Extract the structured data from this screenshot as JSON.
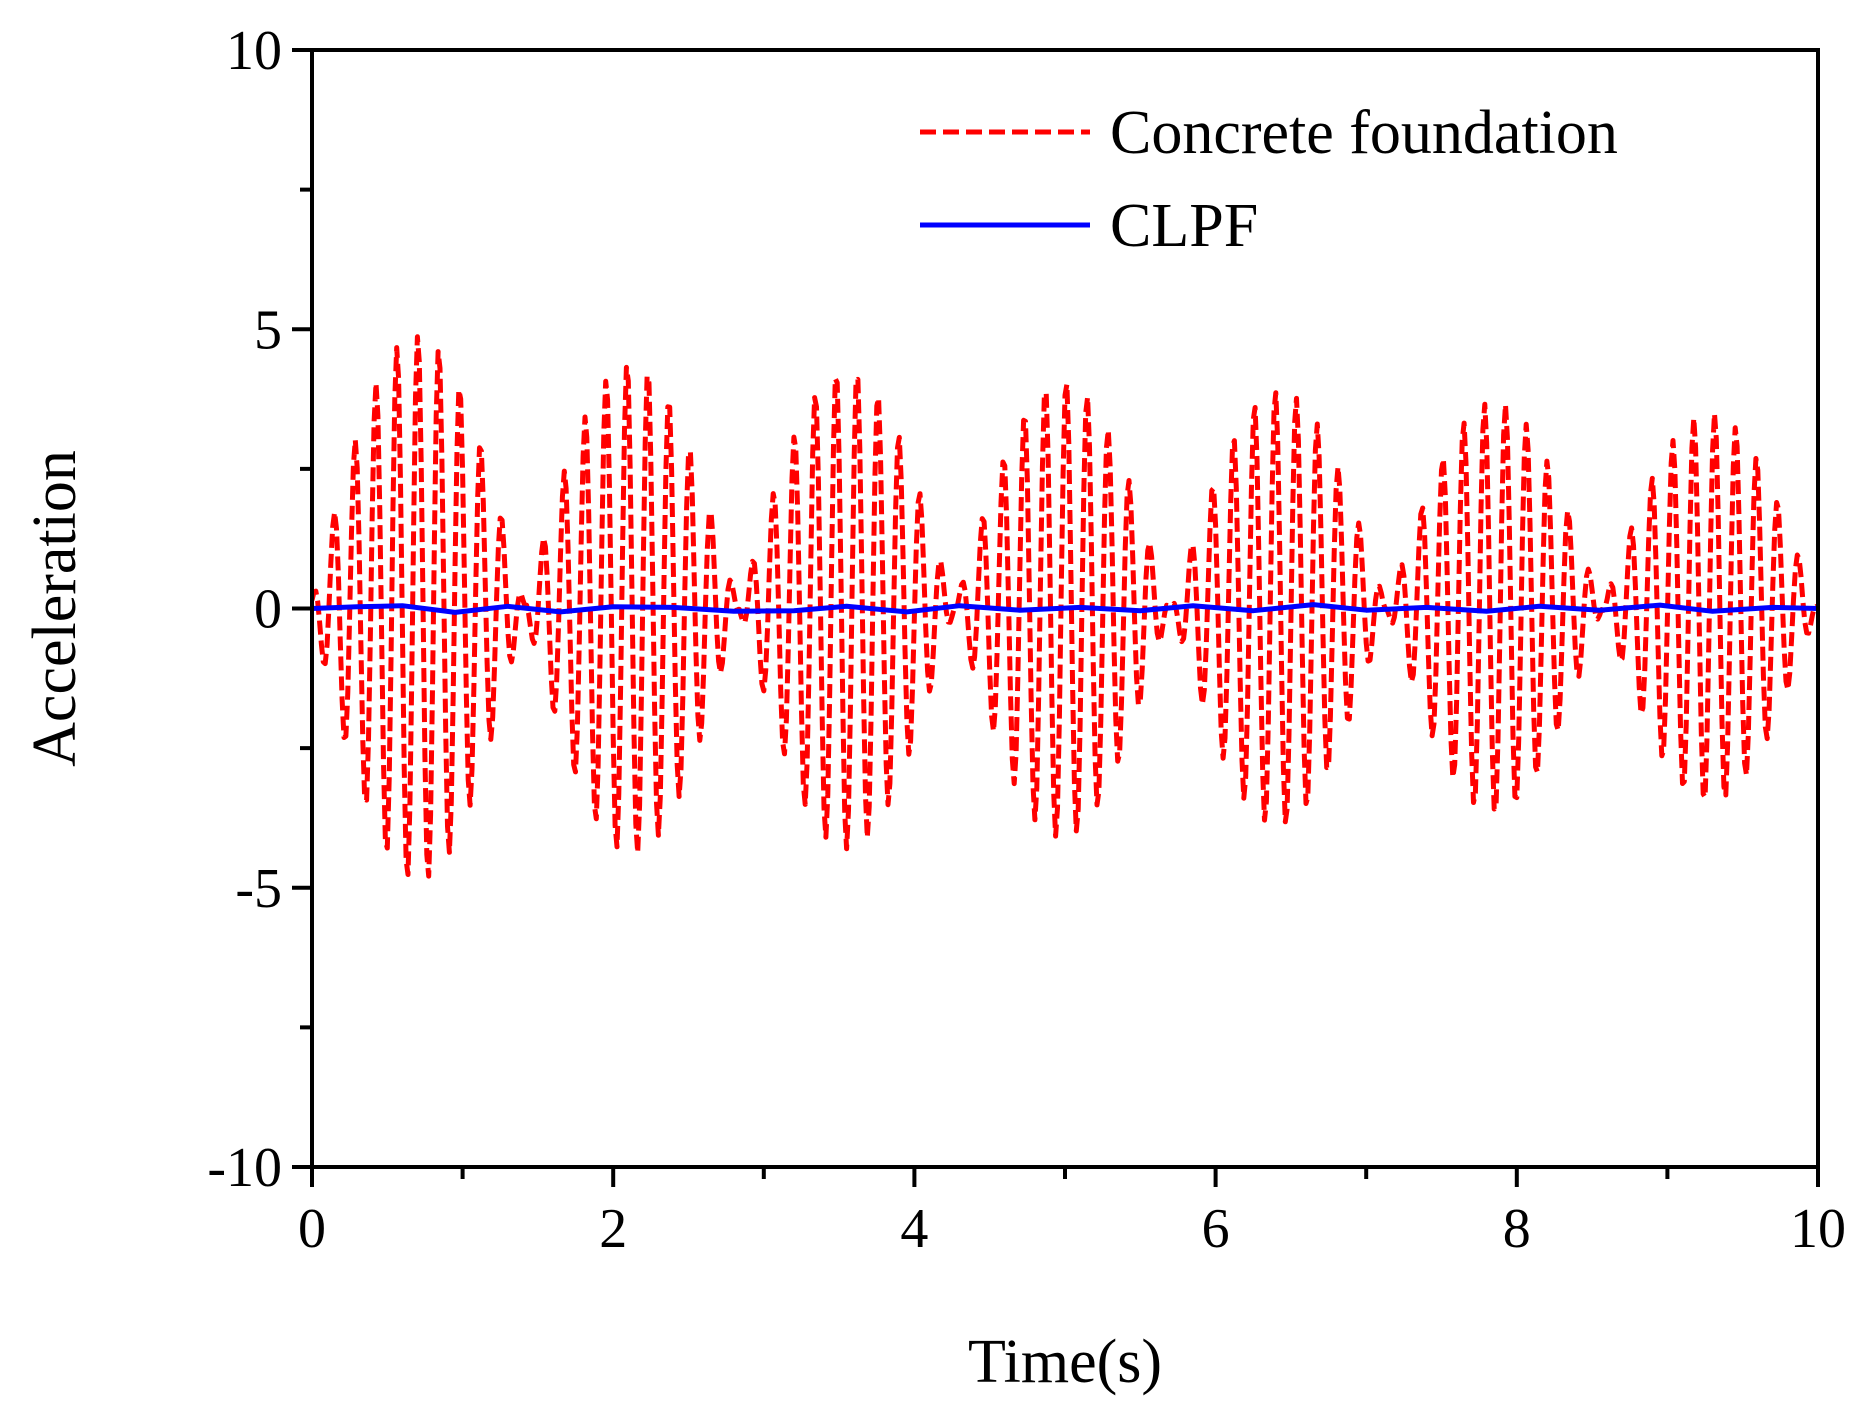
{
  "chart_data": {
    "type": "line",
    "title": "",
    "xlabel": "Time(s)",
    "ylabel": "Acceleration",
    "xlim": [
      0,
      10
    ],
    "ylim": [
      -10,
      10
    ],
    "grid": false,
    "legend_position": "top-right",
    "x_ticks": [
      0,
      2,
      4,
      6,
      8,
      10
    ],
    "x_tick_labels": [
      "0",
      "2",
      "4",
      "6",
      "8",
      "10"
    ],
    "x_minor_step": 1,
    "y_ticks": [
      10,
      5,
      0,
      -5,
      -10
    ],
    "y_tick_labels": [
      "10",
      "5",
      "0",
      "-5",
      "-10"
    ],
    "y_minor_step": 2.5,
    "series": [
      {
        "name": "Concrete foundation",
        "color": "#ff0000",
        "style": "dashed",
        "sample_dt": 0.0125,
        "note": "beating oscillation, carrier ~7.2 Hz, envelope peaks ~4.9 decaying to ~3.5, envelope period ~1.43 s",
        "envelope_peaks": [
          {
            "t": 0.7,
            "amp": 4.9
          },
          {
            "t": 2.12,
            "amp": 4.4
          },
          {
            "t": 3.55,
            "amp": 4.3
          },
          {
            "t": 4.98,
            "amp": 4.1
          },
          {
            "t": 6.42,
            "amp": 3.9
          },
          {
            "t": 7.85,
            "amp": 3.7
          },
          {
            "t": 9.28,
            "amp": 3.5
          }
        ]
      },
      {
        "name": "CLPF",
        "color": "#0000ff",
        "style": "solid",
        "x": [
          0,
          0.3,
          0.6,
          0.95,
          1.3,
          1.65,
          2.0,
          2.4,
          2.8,
          3.2,
          3.55,
          3.95,
          4.3,
          4.7,
          5.1,
          5.5,
          5.85,
          6.25,
          6.65,
          7.0,
          7.4,
          7.8,
          8.15,
          8.55,
          8.95,
          9.3,
          9.7,
          10.0
        ],
        "values": [
          0,
          0.03,
          0.05,
          -0.07,
          0.04,
          -0.06,
          0.03,
          0.02,
          -0.05,
          -0.04,
          0.04,
          -0.06,
          0.05,
          -0.03,
          0.02,
          -0.04,
          0.05,
          -0.04,
          0.07,
          -0.03,
          0.02,
          -0.05,
          0.04,
          -0.03,
          0.06,
          -0.05,
          0.02,
          0.0
        ]
      }
    ]
  }
}
